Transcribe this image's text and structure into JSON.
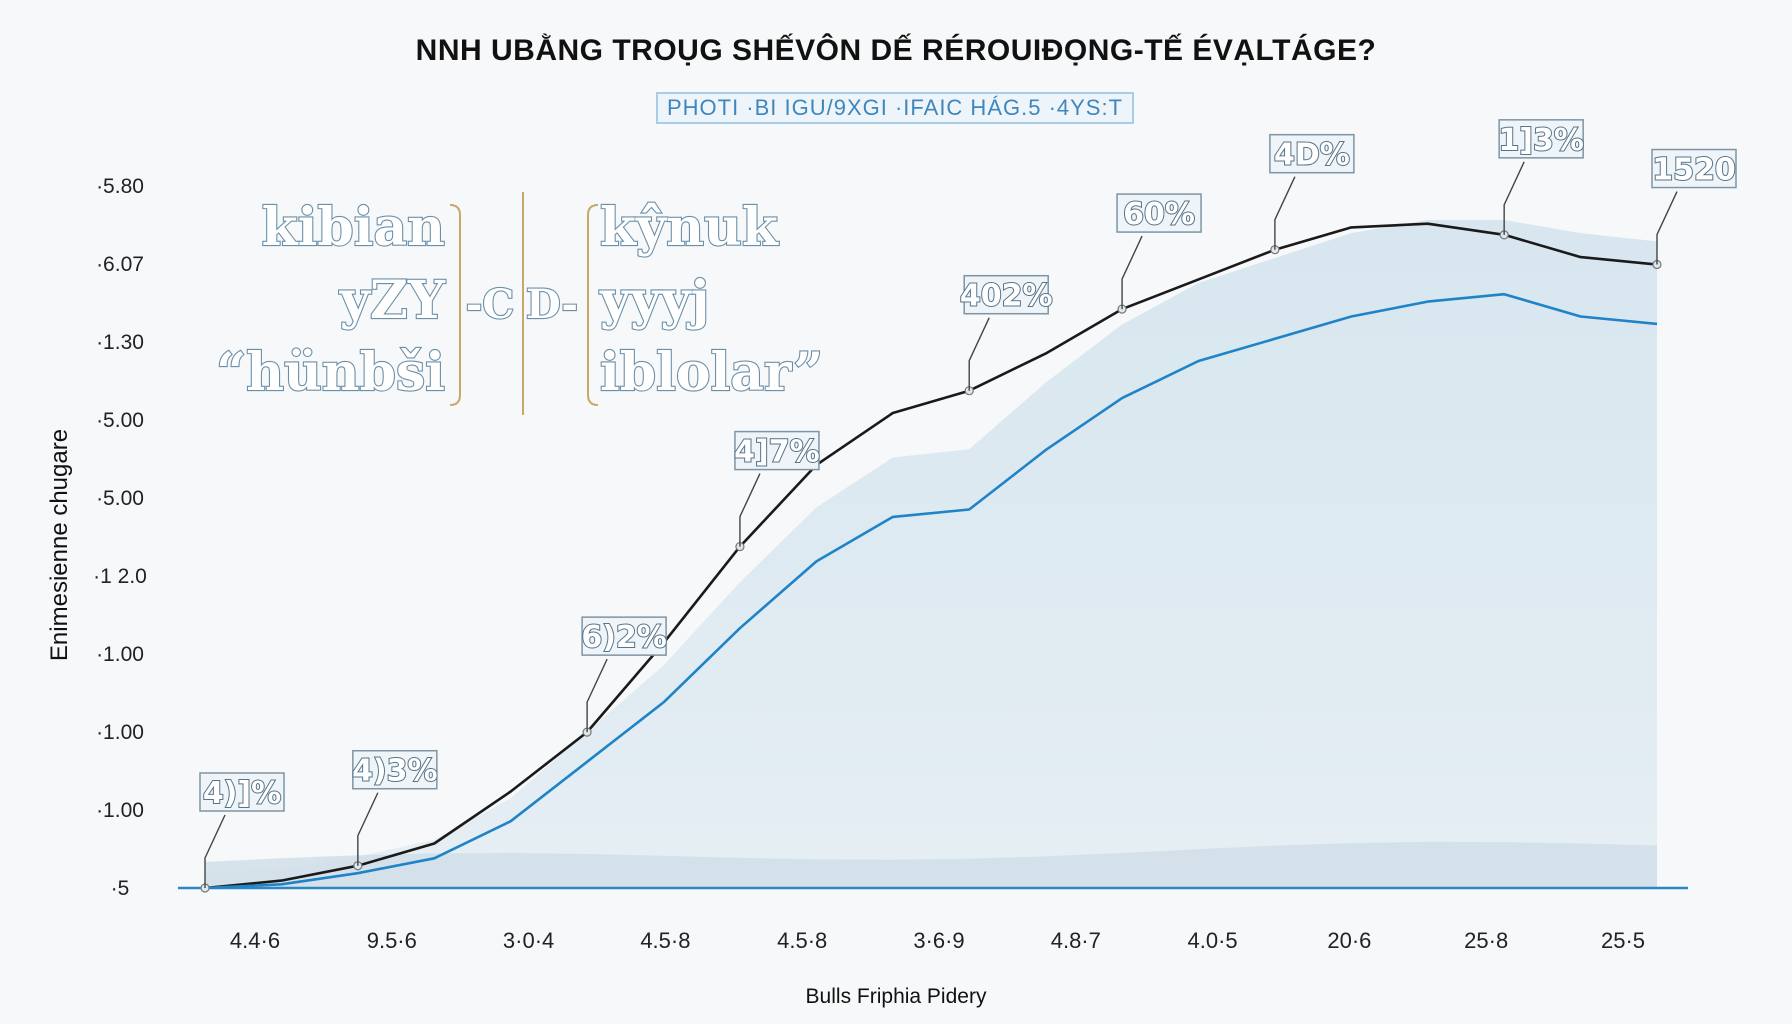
{
  "chart_data": {
    "type": "line",
    "title": "NNH UBẰNG TROỤG SHẾVÔN DẾ RÉROUIĐỌNG-TẾ ÉVẠLTÁGE?",
    "subtitle": "PHOTI ·BI IGU/9XGI ·IFAIC HÁG.5 ·4YS:T",
    "xlabel": "Bulls Friphia Pidery",
    "ylabel": "Enimesienne chugare",
    "x_ticks": [
      "4.4·6",
      "9.5·6",
      "3·0·4",
      "4.5·8",
      "4.5·8",
      "3·6·9",
      "4.8·7",
      "4.0·5",
      "20·6",
      "25·8",
      "25·5"
    ],
    "y_ticks": [
      "·5.80",
      "·6.07",
      "·1.30",
      "·5.00",
      "·5.00",
      "·1 2.0",
      "·1.00",
      "·1.00",
      "·1.00",
      "·5"
    ],
    "series": [
      {
        "color": "#1a1a1a",
        "values": [
          0,
          0.1,
          0.3,
          0.6,
          1.3,
          2.1,
          3.3,
          4.6,
          5.7,
          6.4,
          6.7,
          7.2,
          7.8,
          8.2,
          8.6,
          8.9,
          8.95,
          8.8,
          8.5,
          8.4
        ]
      },
      {
        "color": "#1f83c8",
        "values": [
          0,
          0.05,
          0.2,
          0.4,
          0.9,
          1.7,
          2.5,
          3.5,
          4.4,
          5.0,
          5.1,
          5.9,
          6.6,
          7.1,
          7.4,
          7.7,
          7.9,
          8.0,
          7.7,
          7.6
        ]
      }
    ],
    "ylim": [
      0,
      9
    ],
    "annotations": [
      {
        "label": "4)]%",
        "point": 0
      },
      {
        "label": "4)3%",
        "point": 1
      },
      {
        "label": "6)2%",
        "point": 2
      },
      {
        "label": "4]7%",
        "point": 3
      },
      {
        "label": "402%",
        "point": 4
      },
      {
        "label": "60%",
        "point": 5
      },
      {
        "label": "4D%",
        "point": 6
      },
      {
        "label": "1]3%",
        "point": 7
      },
      {
        "label": "1520",
        "point": 8
      }
    ],
    "grid": false,
    "legend": "none"
  },
  "inset": {
    "left_lines": [
      "kibian",
      "yZY",
      "“hünbši"
    ],
    "right_lines": [
      "kŷnuk",
      "yyyj",
      "iblolar”"
    ],
    "mid_symbols": [
      "-C",
      "D-"
    ]
  }
}
